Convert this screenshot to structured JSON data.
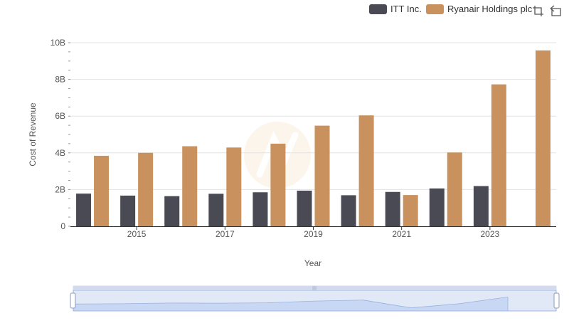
{
  "chart_data": {
    "type": "bar",
    "x": [
      2014,
      2015,
      2016,
      2017,
      2018,
      2019,
      2020,
      2021,
      2022,
      2023,
      2024
    ],
    "x_tick_labels": [
      "2015",
      "2017",
      "2019",
      "2021",
      "2023"
    ],
    "x_tick_values": [
      2015,
      2017,
      2019,
      2021,
      2023
    ],
    "y_tick_labels": [
      "0",
      "2B",
      "4B",
      "6B",
      "8B",
      "10B"
    ],
    "y_tick_values": [
      0,
      2,
      4,
      6,
      8,
      10
    ],
    "xlabel": "Year",
    "ylabel": "Cost of Revenue",
    "ylim": [
      0,
      10
    ],
    "y_unit": "billions",
    "grid": true,
    "legend_position": "top-right",
    "series": [
      {
        "name": "ITT Inc.",
        "color": "#4a4a55",
        "values": [
          1.78,
          1.67,
          1.64,
          1.77,
          1.85,
          1.94,
          1.69,
          1.87,
          2.06,
          2.19,
          null
        ]
      },
      {
        "name": "Ryanair Holdings plc",
        "color": "#c8915e",
        "values": [
          3.84,
          4.0,
          4.36,
          4.29,
          4.5,
          5.48,
          6.04,
          1.7,
          4.02,
          7.73,
          9.58
        ]
      }
    ]
  },
  "toolbar": {
    "icons": [
      "crop-icon",
      "reset-icon"
    ]
  },
  "zoom_slider": {
    "range_start_percent": 0,
    "range_end_percent": 100
  }
}
